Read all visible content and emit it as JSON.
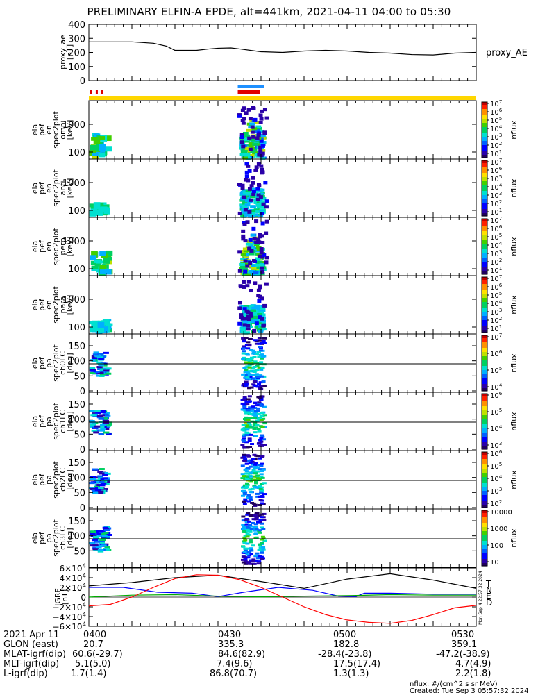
{
  "title": "PRELIMINARY ELFIN-A EPDE, alt=441km, 2021-04-11 04:00 to 05:30",
  "colors": {
    "background": "#ffffff",
    "axes": "#000000",
    "yellow_bar": "#ffd700",
    "blue_bar": "#1e90ff",
    "red_bar": "#e00000",
    "T": "#000000",
    "N": "#0000ff",
    "E": "#00aa00",
    "D": "#ff0000"
  },
  "panels": {
    "proxy_ae": {
      "ylabel_lines": [
        "proxy_ae",
        "[nT]"
      ],
      "right_label": "proxy_AE"
    },
    "spec": [
      {
        "ylabel_lines": [
          "ela",
          "pef",
          "en",
          "spec2plot",
          "omni",
          "[keV]"
        ],
        "cbar_label": "nflux"
      },
      {
        "ylabel_lines": [
          "ela",
          "pef",
          "en",
          "spec2plot",
          "anti",
          "[keV]"
        ],
        "cbar_label": "nflux"
      },
      {
        "ylabel_lines": [
          "ela",
          "pef",
          "en",
          "spec2plot",
          "perp",
          "[keV]"
        ],
        "cbar_label": "nflux"
      },
      {
        "ylabel_lines": [
          "ela",
          "pef",
          "en",
          "spec2plot",
          "para",
          "[keV]"
        ],
        "cbar_label": "nflux"
      },
      {
        "ylabel_lines": [
          "ela",
          "pef",
          "pa",
          "spec2plot",
          "ch0LC",
          "[deg]"
        ],
        "cbar_label": "nflux"
      },
      {
        "ylabel_lines": [
          "ela",
          "pef",
          "pa",
          "spec2plot",
          "ch1LC",
          "[deg]"
        ],
        "cbar_label": "nflux"
      },
      {
        "ylabel_lines": [
          "ela",
          "pef",
          "pa",
          "spec2plot",
          "ch2LC",
          "[deg]"
        ],
        "cbar_label": "nflux"
      },
      {
        "ylabel_lines": [
          "ela",
          "pef",
          "pa",
          "spec2plot",
          "ch3LC",
          "[deg]"
        ],
        "cbar_label": "nflux"
      }
    ],
    "igrf": {
      "ylabel_lines": [
        "IGRF",
        "[nT]"
      ],
      "legend": [
        "T",
        "N",
        "E",
        "D"
      ],
      "side_text": "Mon Sep  4 22:57:32 2024"
    }
  },
  "chart_data": [
    {
      "type": "line",
      "name": "proxy_ae",
      "x_minutes": [
        0,
        5,
        10,
        15,
        18,
        20,
        25,
        28,
        30,
        33,
        35,
        40,
        45,
        50,
        55,
        60,
        65,
        70,
        75,
        80,
        85,
        90
      ],
      "values": [
        275,
        275,
        275,
        265,
        245,
        215,
        215,
        225,
        230,
        232,
        225,
        205,
        200,
        210,
        215,
        210,
        200,
        195,
        185,
        182,
        195,
        200
      ],
      "yticks": [
        "400",
        "300",
        "200",
        "100",
        "0"
      ],
      "ylim": [
        0,
        400
      ]
    },
    {
      "type": "heatmap",
      "name": "omni",
      "yticks": [
        "1000",
        "100"
      ],
      "cbar_ticks": [
        "10^7",
        "10^6",
        "10^5",
        "10^4",
        "10^3",
        "10^2",
        "10^1"
      ]
    },
    {
      "type": "heatmap",
      "name": "anti",
      "yticks": [
        "1000",
        "100"
      ],
      "cbar_ticks": [
        "10^7",
        "10^6",
        "10^5",
        "10^4",
        "10^3",
        "10^2",
        "10^1"
      ]
    },
    {
      "type": "heatmap",
      "name": "perp",
      "yticks": [
        "1000",
        "100"
      ],
      "cbar_ticks": [
        "10^7",
        "10^6",
        "10^5",
        "10^4",
        "10^3",
        "10^2",
        "10^1"
      ]
    },
    {
      "type": "heatmap",
      "name": "para",
      "yticks": [
        "1000",
        "100"
      ],
      "cbar_ticks": [
        "10^7",
        "10^6",
        "10^5",
        "10^4",
        "10^3",
        "10^2",
        "10^1"
      ]
    },
    {
      "type": "heatmap",
      "name": "ch0LC",
      "yticks": [
        "150",
        "100",
        "50",
        "0"
      ],
      "cbar_ticks": [
        "10^7",
        "10^6",
        "10^5",
        "10^4"
      ]
    },
    {
      "type": "heatmap",
      "name": "ch1LC",
      "yticks": [
        "150",
        "100",
        "50",
        "0"
      ],
      "cbar_ticks": [
        "10^6",
        "10^5",
        "10^4",
        "10^3"
      ]
    },
    {
      "type": "heatmap",
      "name": "ch2LC",
      "yticks": [
        "150",
        "100",
        "50",
        "0"
      ],
      "cbar_ticks": [
        "10^6",
        "10^5",
        "10^4",
        "10^3",
        "10^2"
      ]
    },
    {
      "type": "heatmap",
      "name": "ch3LC",
      "yticks": [
        "150",
        "100",
        "50"
      ],
      "cbar_ticks": [
        "10000",
        "1000",
        "100",
        "10"
      ]
    },
    {
      "type": "line",
      "name": "IGRF",
      "yticks": [
        "6×10^4",
        "4×10^4",
        "2×10^4",
        "0",
        "−2×10^4",
        "−4×10^4",
        "−6×10^4"
      ],
      "ylim": [
        -60000,
        60000
      ],
      "series": [
        {
          "name": "T",
          "x_minutes": [
            0,
            10,
            20,
            30,
            40,
            50,
            60,
            70,
            80,
            90
          ],
          "values": [
            23000,
            30000,
            40000,
            45000,
            32000,
            18000,
            37000,
            48000,
            35000,
            18000
          ]
        },
        {
          "name": "N",
          "x_minutes": [
            0,
            8,
            16,
            24,
            30,
            36,
            44,
            52,
            58,
            62,
            64,
            70,
            80,
            90
          ],
          "values": [
            20000,
            20000,
            10000,
            8000,
            1000,
            10000,
            20000,
            14000,
            2000,
            1000,
            8000,
            8000,
            6000,
            6000
          ]
        },
        {
          "name": "E",
          "x_minutes": [
            0,
            10,
            20,
            30,
            40,
            50,
            60,
            70,
            80,
            90
          ],
          "values": [
            0,
            4000,
            5000,
            2000,
            500,
            2000,
            3000,
            5000,
            4000,
            4000
          ]
        },
        {
          "name": "D",
          "x_minutes": [
            0,
            5,
            10,
            15,
            20,
            25,
            30,
            35,
            40,
            45,
            50,
            55,
            60,
            65,
            70,
            75,
            80,
            85,
            90
          ],
          "values": [
            -18000,
            -15000,
            0,
            20000,
            38000,
            46000,
            45000,
            36000,
            20000,
            0,
            -20000,
            -36000,
            -47000,
            -52000,
            -54000,
            -48000,
            -36000,
            -22000,
            -17000
          ]
        }
      ]
    }
  ],
  "bottom_table": {
    "labels": [
      "2021 Apr 11",
      "GLON (east)",
      "MLAT-igrf(dip)",
      "MLT-igrf(dip)",
      "L-igrf(dip)"
    ],
    "columns": [
      [
        "0400",
        "20.7",
        "60.6(-29.7)",
        "5.1(5.0)",
        "1.7(1.4)"
      ],
      [
        "0430",
        "335.3",
        "84.6(82.9)",
        "7.4(9.6)",
        "86.8(70.7)"
      ],
      [
        "0500",
        "182.8",
        "-28.4(-23.8)",
        "17.5(17.4)",
        "1.3(1.3)"
      ],
      [
        "0530",
        "359.1",
        "-47.2(-38.9)",
        "4.7(4.9)",
        "2.2(1.8)"
      ]
    ]
  },
  "footer": {
    "units": "nflux: #/(cm^2 s sr MeV)",
    "created": "Created: Tue Sep  3 05:57:32 2024"
  }
}
